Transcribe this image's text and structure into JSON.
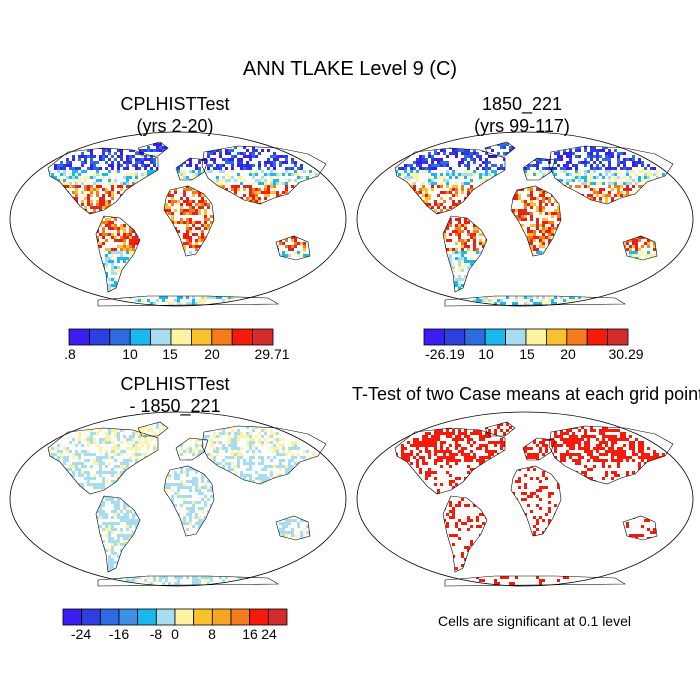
{
  "title": "ANN TLAKE Level 9 (C)",
  "panels": [
    {
      "line1": "CPLHISTTest",
      "line2": "(yrs 2-20)"
    },
    {
      "line1": "1850_221",
      "line2": "(yrs 99-117)"
    },
    {
      "line1": "CPLHISTTest",
      "line2": "- 1850_221"
    },
    {
      "line1": "T-Test of two Case means at each grid point",
      "line2": ""
    }
  ],
  "colorbars": {
    "top_left": {
      "colors": [
        "#3a1ef0",
        "#2e3fe0",
        "#2d6be0",
        "#1ab8ef",
        "#a8dcef",
        "#fef3a0",
        "#fbc02d",
        "#f57c1a",
        "#f51a0a",
        "#d42c2c"
      ],
      "labels": [
        ".8",
        "10",
        "15",
        "20",
        "29.71"
      ]
    },
    "top_right": {
      "colors": [
        "#3a1ef0",
        "#2e3fe0",
        "#2d6be0",
        "#1ab8ef",
        "#a8dcef",
        "#fef3a0",
        "#fbc02d",
        "#f57c1a",
        "#f51a0a",
        "#d42c2c"
      ],
      "labels": [
        "-26.19",
        "10",
        "15",
        "20",
        "30.29"
      ]
    },
    "bottom": {
      "colors": [
        "#3a1ef0",
        "#2e3fe0",
        "#2d6be0",
        "#3d8fe8",
        "#1ab8ef",
        "#a8dcef",
        "#fef3a0",
        "#fbc02d",
        "#f5a623",
        "#f57c1a",
        "#f51a0a",
        "#d42c2c"
      ],
      "labels": [
        "-24",
        "-16",
        "-8",
        "0",
        "8",
        "16",
        "24"
      ]
    }
  },
  "note": "Cells are significant at 0.1 level"
}
